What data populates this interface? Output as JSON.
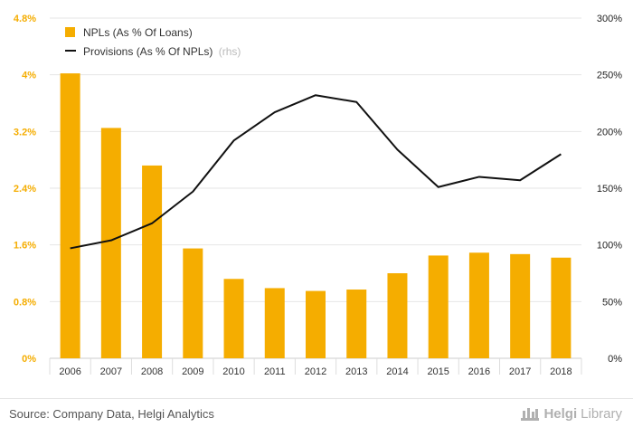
{
  "chart_data": {
    "type": "bar",
    "categories": [
      "2006",
      "2007",
      "2008",
      "2009",
      "2010",
      "2011",
      "2012",
      "2013",
      "2014",
      "2015",
      "2016",
      "2017",
      "2018"
    ],
    "series": [
      {
        "name": "NPLs (As % Of Loans)",
        "type": "bar",
        "axis": "left",
        "color": "#f5ad00",
        "values": [
          4.02,
          3.25,
          2.72,
          1.55,
          1.12,
          0.99,
          0.95,
          0.97,
          1.2,
          1.45,
          1.49,
          1.47,
          1.42
        ]
      },
      {
        "name": "Provisions (As % Of NPLs)",
        "type": "line",
        "axis": "right",
        "color": "#111111",
        "values": [
          97,
          104,
          119,
          147,
          192,
          217,
          232,
          226,
          184,
          151,
          160,
          157,
          180
        ]
      }
    ],
    "left_axis": {
      "ticks": [
        "0%",
        "0.8%",
        "1.6%",
        "2.4%",
        "3.2%",
        "4%",
        "4.8%"
      ],
      "min": 0,
      "max": 4.8,
      "color": "#f5ad00"
    },
    "right_axis": {
      "ticks": [
        "0%",
        "50%",
        "100%",
        "150%",
        "200%",
        "250%",
        "300%"
      ],
      "min": 0,
      "max": 300
    },
    "legend": {
      "position": "top-left",
      "rhs_suffix": "(rhs)"
    },
    "grid": true
  },
  "footer": {
    "source": "Source: Company Data, Helgi Analytics",
    "logo_word1": "Helgi",
    "logo_word2": "Library"
  }
}
